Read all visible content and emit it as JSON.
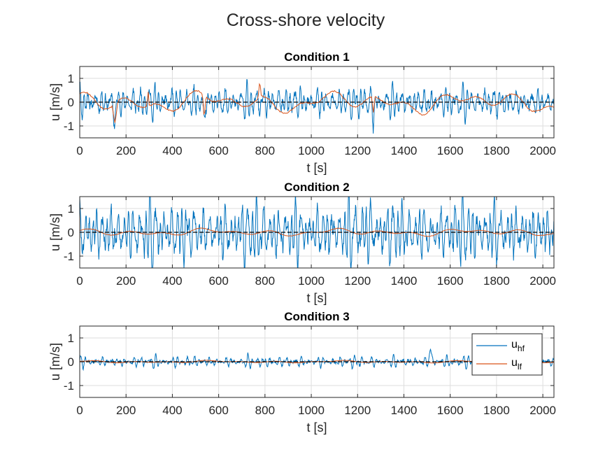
{
  "figure": {
    "title": "Cross-shore velocity",
    "grid": true,
    "background": "#ffffff"
  },
  "legend": {
    "placement": "top-right of third panel",
    "entries": [
      {
        "base": "u",
        "sub": "hf",
        "color": "#0072BD"
      },
      {
        "base": "u",
        "sub": "lf",
        "color": "#D95319"
      }
    ]
  },
  "chart_data": [
    {
      "type": "line",
      "title": "Condition 1",
      "xlabel": "t [s]",
      "ylabel": "u [m/s]",
      "xlim": [
        0,
        2048
      ],
      "ylim": [
        -1.5,
        1.5
      ],
      "xticks": [
        0,
        200,
        400,
        600,
        800,
        1000,
        1200,
        1400,
        1600,
        1800,
        2000
      ],
      "yticks": [
        -1,
        0,
        1
      ],
      "zero_line": {
        "y": 0,
        "style": "dashed",
        "color": "#000000"
      },
      "series": [
        {
          "name": "u_hf",
          "color": "#0072BD",
          "amplitude": 0.45,
          "kind": "high-frequency oscillation",
          "seed": 11,
          "events": [
            [
              140,
              160,
              -0.75
            ],
            [
              530,
              545,
              -0.9
            ],
            [
              1260,
              1275,
              -0.7
            ]
          ]
        },
        {
          "name": "u_lf",
          "color": "#D95319",
          "amplitude": 0.35,
          "kind": "low-frequency oscillation",
          "seed": 12,
          "events": [
            [
              140,
              165,
              -0.85
            ],
            [
              290,
              300,
              0.75
            ],
            [
              530,
              545,
              -1.0
            ],
            [
              770,
              785,
              0.7
            ],
            [
              1260,
              1275,
              -0.7
            ]
          ]
        }
      ]
    },
    {
      "type": "line",
      "title": "Condition 2",
      "xlabel": "t [s]",
      "ylabel": "u [m/s]",
      "xlim": [
        0,
        2048
      ],
      "ylim": [
        -1.5,
        1.5
      ],
      "xticks": [
        0,
        200,
        400,
        600,
        800,
        1000,
        1200,
        1400,
        1600,
        1800,
        2000
      ],
      "yticks": [
        -1,
        0,
        1
      ],
      "zero_line": {
        "y": 0,
        "style": "dashed",
        "color": "#000000"
      },
      "series": [
        {
          "name": "u_hf",
          "color": "#0072BD",
          "amplitude": 0.9,
          "kind": "high-frequency oscillation",
          "seed": 21,
          "events": []
        },
        {
          "name": "u_lf",
          "color": "#D95319",
          "amplitude": 0.12,
          "kind": "low-frequency oscillation",
          "seed": 22,
          "events": []
        }
      ]
    },
    {
      "type": "line",
      "title": "Condition 3",
      "xlabel": "t [s]",
      "ylabel": "u [m/s]",
      "xlim": [
        0,
        2048
      ],
      "ylim": [
        -1.5,
        1.5
      ],
      "xticks": [
        0,
        200,
        400,
        600,
        800,
        1000,
        1200,
        1400,
        1600,
        1800,
        2000
      ],
      "yticks": [
        -1,
        0,
        1
      ],
      "zero_line": {
        "y": 0,
        "style": "dashed",
        "color": "#000000"
      },
      "series": [
        {
          "name": "u_hf",
          "color": "#0072BD",
          "amplitude": 0.15,
          "kind": "high-frequency oscillation",
          "seed": 31,
          "events": [
            [
              1505,
              1525,
              0.55
            ]
          ]
        },
        {
          "name": "u_lf",
          "color": "#D95319",
          "amplitude": 0.04,
          "kind": "low-frequency oscillation",
          "seed": 32,
          "events": []
        }
      ]
    }
  ]
}
